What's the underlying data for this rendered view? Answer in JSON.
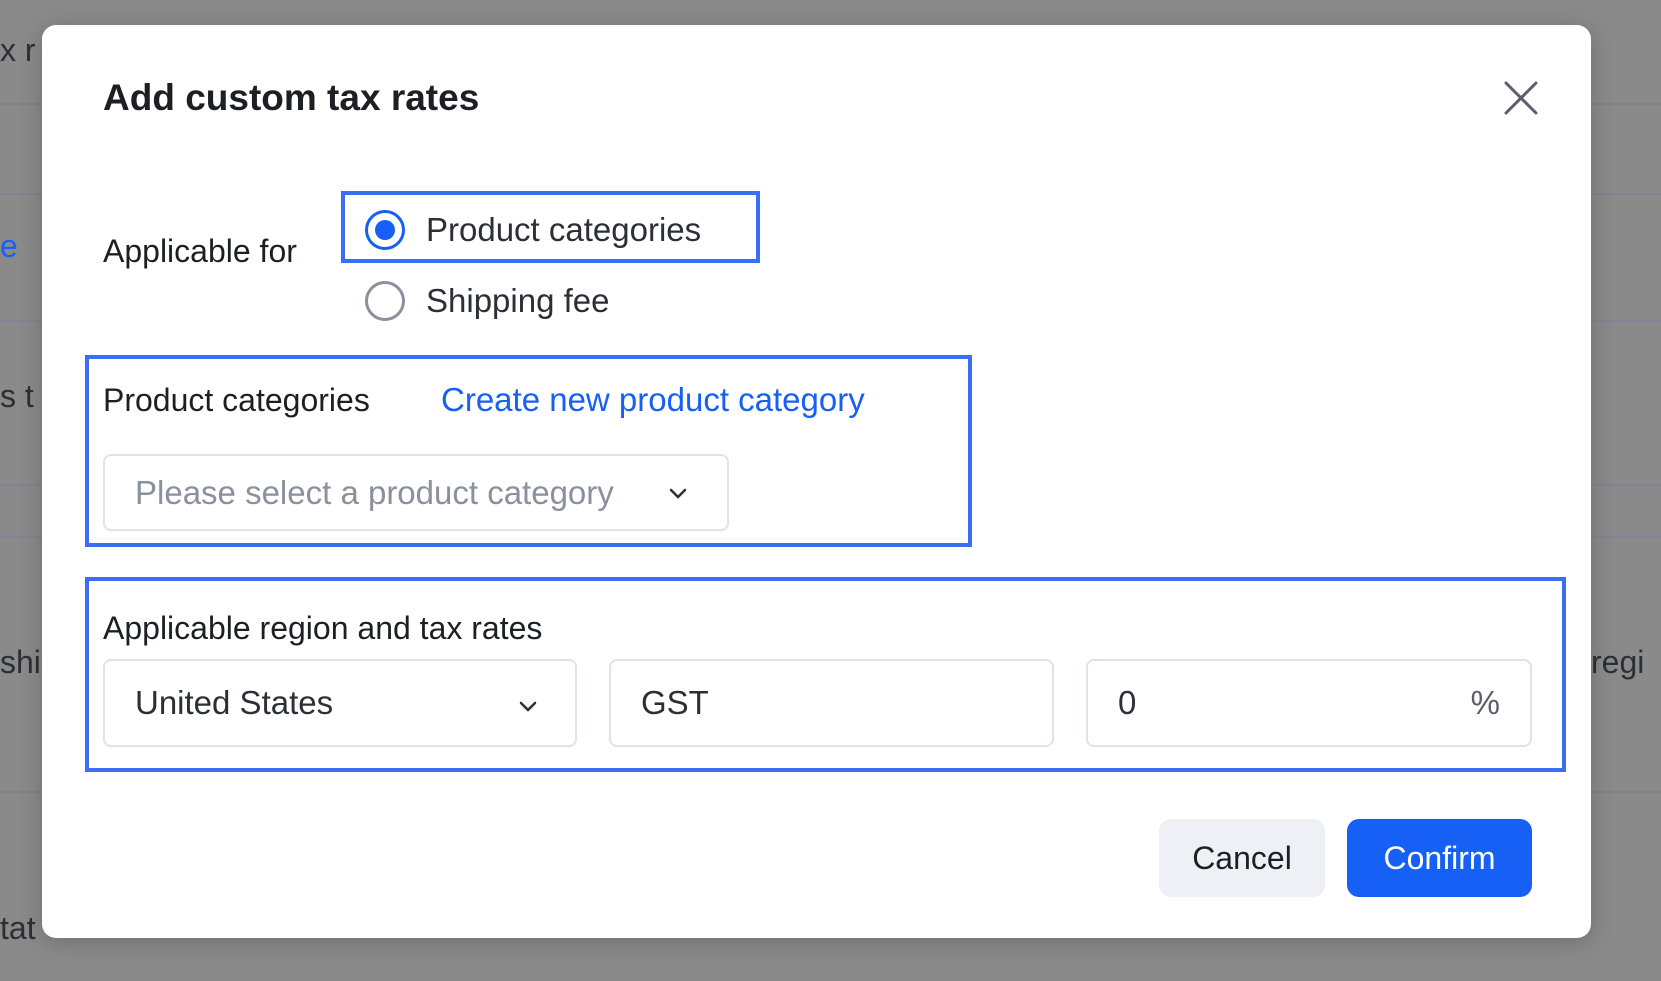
{
  "background": {
    "fragments_left": [
      "x r",
      "e",
      "s t",
      "shi",
      "tat"
    ],
    "fragments_right": [
      "regi"
    ]
  },
  "dialog": {
    "title": "Add custom tax rates",
    "close_icon": "close-icon",
    "applicable_for": {
      "label": "Applicable for",
      "options": [
        {
          "label": "Product categories",
          "checked": true
        },
        {
          "label": "Shipping fee",
          "checked": false
        }
      ]
    },
    "product_categories": {
      "label": "Product categories",
      "create_link": "Create new product category",
      "select_placeholder": "Please select a product category"
    },
    "region": {
      "label": "Applicable region and tax rates",
      "country_value": "United States",
      "tax_name_value": "GST",
      "rate_value": "0",
      "rate_suffix": "%"
    },
    "buttons": {
      "cancel": "Cancel",
      "confirm": "Confirm"
    }
  },
  "colors": {
    "accent": "#1660f5",
    "highlight": "#3b6ef5",
    "overlay": "#8a8a8a"
  }
}
